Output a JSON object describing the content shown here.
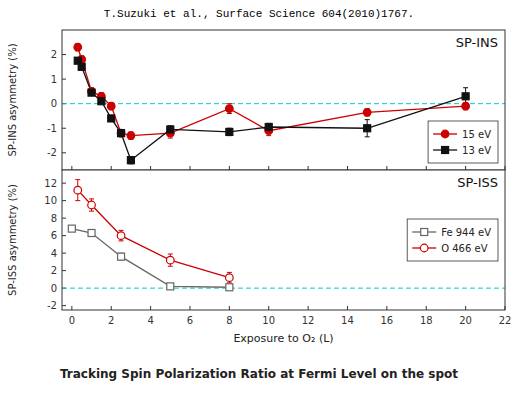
{
  "chart_data": [
    {
      "type": "line",
      "title": "T.Suzuki et al., Surface Science 604(2010)1767.",
      "y_label": "SP-INS asymmetry (%)",
      "annotations": [
        "SP-INS"
      ],
      "xlim": [
        -0.5,
        22
      ],
      "ylim": [
        -2.7,
        3.0
      ],
      "xticks": [
        0,
        2,
        4,
        6,
        8,
        10,
        12,
        14,
        16,
        18,
        20,
        22
      ],
      "yticks": [
        -2,
        -1,
        0,
        1,
        2
      ],
      "tick_labels": "y",
      "grid": false,
      "legend": "lower right",
      "zero_line": {
        "y": 0,
        "color": "#00cccc",
        "line_style": "dashed"
      },
      "series": [
        {
          "name": "15 eV",
          "color": "#cc0000",
          "marker": "circle",
          "x": [
            0.3,
            0.5,
            1.0,
            1.5,
            2.0,
            2.5,
            3.0,
            5.0,
            8.0,
            10.0,
            15.0,
            20.0
          ],
          "values": [
            2.3,
            1.8,
            0.5,
            0.3,
            -0.1,
            -1.2,
            -1.3,
            -1.2,
            -0.2,
            -1.1,
            -0.35,
            -0.1
          ],
          "errors": [
            0.15,
            0.15,
            0.15,
            0.15,
            0.15,
            0.15,
            0.15,
            0.2,
            0.2,
            0.2,
            0.15,
            0.15
          ]
        },
        {
          "name": "13 eV",
          "color": "#111111",
          "marker": "square",
          "x": [
            0.3,
            0.5,
            1.0,
            1.5,
            2.0,
            2.5,
            3.0,
            5.0,
            8.0,
            10.0,
            15.0,
            20.0
          ],
          "values": [
            1.75,
            1.5,
            0.45,
            0.1,
            -0.6,
            -1.2,
            -2.3,
            -1.05,
            -1.15,
            -0.95,
            -1.0,
            0.3
          ],
          "errors": [
            0.1,
            0.1,
            0.1,
            0.1,
            0.12,
            0.12,
            0.15,
            0.15,
            0.15,
            0.15,
            0.35,
            0.35
          ]
        }
      ]
    },
    {
      "type": "line",
      "title": "Tracking Spin Polarization Ratio at Fermi Level on the spot",
      "x_label": "Exposure to O₂ (L)",
      "y_label": "SP-ISS asymmetry (%)",
      "annotations": [
        "SP-ISS"
      ],
      "xlim": [
        -0.5,
        22
      ],
      "ylim": [
        -2.5,
        13.5
      ],
      "xticks": [
        0,
        2,
        4,
        6,
        8,
        10,
        12,
        14,
        16,
        18,
        20,
        22
      ],
      "yticks": [
        -2,
        0,
        2,
        4,
        6,
        8,
        10,
        12
      ],
      "tick_labels": true,
      "grid": false,
      "legend": "right",
      "zero_line": {
        "y": 0,
        "color": "#00cccc",
        "line_style": "dashed"
      },
      "series": [
        {
          "name": "Fe 944 eV",
          "color": "#666666",
          "marker": "open-square",
          "x": [
            0.0,
            1.0,
            2.5,
            5.0,
            8.0
          ],
          "values": [
            6.8,
            6.3,
            3.6,
            0.2,
            0.1
          ],
          "errors": [
            0.3,
            0.3,
            0.4,
            0.3,
            0.3
          ]
        },
        {
          "name": "O 466 eV",
          "color": "#cc0000",
          "marker": "open-circle",
          "x": [
            0.3,
            1.0,
            2.5,
            5.0,
            8.0
          ],
          "values": [
            11.2,
            9.5,
            6.0,
            3.2,
            1.2
          ],
          "errors": [
            1.2,
            0.7,
            0.6,
            0.7,
            0.6
          ]
        }
      ]
    }
  ]
}
